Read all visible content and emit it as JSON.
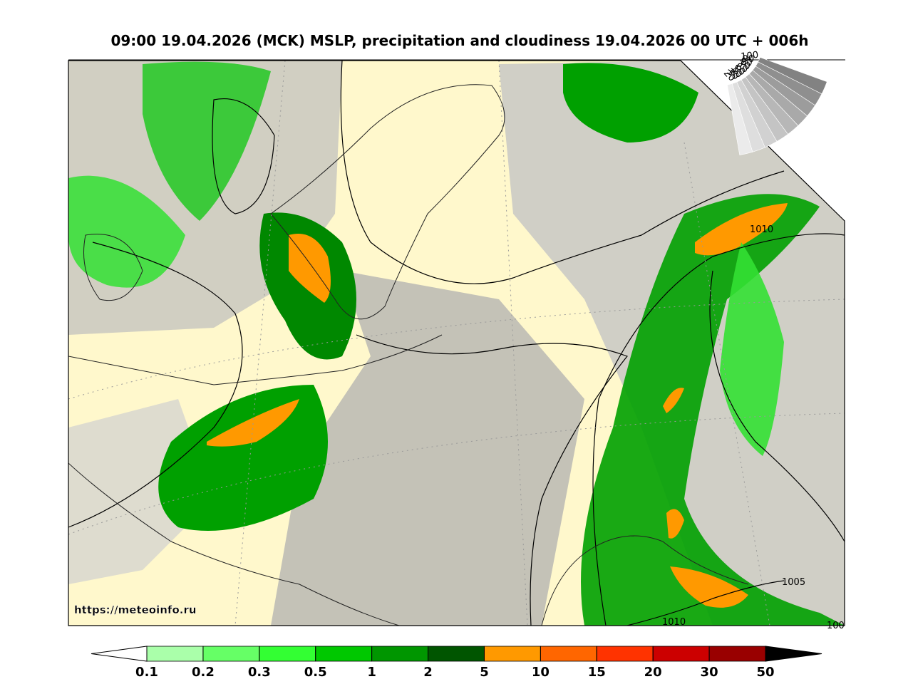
{
  "header": {
    "title": "09:00 19.04.2026 (MCK) MSLP, precipitation and cloudiness 19.04.2026 00 UTC + 006h"
  },
  "map": {
    "source_url": "https://meteoinfo.ru",
    "isobar_labels": [
      "1010",
      "1005",
      "1010",
      "100"
    ]
  },
  "cloud_legend": {
    "labels": [
      "100",
      "90",
      "80",
      "70",
      "60",
      "50",
      "40",
      "30",
      "20"
    ]
  },
  "colorbar": {
    "ticks": [
      0.1,
      0.2,
      0.3,
      0.5,
      1,
      2,
      5,
      10,
      15,
      20,
      30,
      50
    ],
    "colors": [
      "#aaffaa",
      "#66ff66",
      "#33ff33",
      "#00c800",
      "#009600",
      "#005500",
      "#ff9900",
      "#ff6600",
      "#ff3300",
      "#cc0000",
      "#990000"
    ]
  }
}
